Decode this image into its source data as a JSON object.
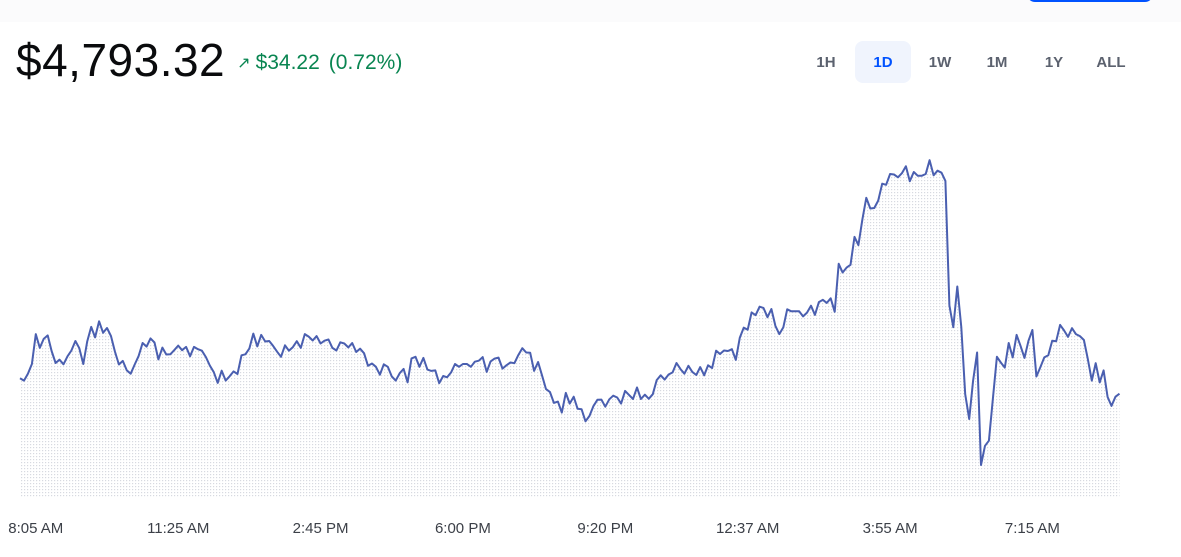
{
  "price": "$4,793.32",
  "change": {
    "arrow_icon": "arrow-up-right-icon",
    "amount": "$34.22",
    "percent": "(0.72%)"
  },
  "ranges": [
    {
      "label": "1H",
      "active": false
    },
    {
      "label": "1D",
      "active": true
    },
    {
      "label": "1W",
      "active": false
    },
    {
      "label": "1M",
      "active": false
    },
    {
      "label": "1Y",
      "active": false
    },
    {
      "label": "ALL",
      "active": false
    }
  ],
  "colors": {
    "line": "#4a5fb0",
    "positive": "#098551",
    "active_range": "#0052ff",
    "active_range_bg": "#f0f4fd"
  },
  "chart_data": {
    "type": "line",
    "title": "",
    "xlabel": "",
    "ylabel": "",
    "x_ticks": [
      "8:05 AM",
      "11:25 AM",
      "2:45 PM",
      "6:00 PM",
      "9:20 PM",
      "12:37 AM",
      "3:55 AM",
      "7:15 AM"
    ],
    "x_index_range": [
      0,
      288
    ],
    "x_tick_index": [
      4,
      40,
      76,
      112,
      148,
      184,
      220,
      256
    ],
    "y_axis_shown": false,
    "grid": false,
    "area_fill": "dotted",
    "ylim": [
      4700,
      4840
    ],
    "series": [
      {
        "values": [
          4746.8,
          4745.9,
          4748.6,
          4752.4,
          4764.1,
          4758.7,
          4762.2,
          4763.6,
          4757.5,
          4752.8,
          4754.1,
          4752.3,
          4755.4,
          4757.7,
          4761.4,
          4758.6,
          4752.4,
          4761.2,
          4766.9,
          4762.8,
          4769.1,
          4764.6,
          4766.5,
          4763.3,
          4757.3,
          4752.2,
          4753.6,
          4749.9,
          4748.6,
          4752.2,
          4755.5,
          4760.6,
          4759.2,
          4762.4,
          4760.8,
          4754.2,
          4758.8,
          4756.1,
          4756.2,
          4757.8,
          4759.6,
          4757.8,
          4759.1,
          4755.4,
          4759.1,
          4758.2,
          4757.6,
          4755.1,
          4751.8,
          4749.2,
          4745.0,
          4749.8,
          4745.9,
          4747.6,
          4749.5,
          4748.5,
          4755.8,
          4756.2,
          4758.5,
          4764.3,
          4759.3,
          4763.8,
          4761.2,
          4761.4,
          4759.5,
          4757.2,
          4755.2,
          4759.7,
          4757.6,
          4759.0,
          4761.3,
          4758.7,
          4764.1,
          4763.1,
          4761.6,
          4763.3,
          4760.4,
          4761.5,
          4762.0,
          4758.7,
          4757.7,
          4760.9,
          4760.4,
          4758.9,
          4760.6,
          4757.1,
          4758.4,
          4756.6,
          4751.7,
          4752.6,
          4751.3,
          4748.2,
          4752.3,
          4751.3,
          4747.5,
          4745.9,
          4748.8,
          4750.5,
          4745.2,
          4754.6,
          4755.2,
          4751.3,
          4754.8,
          4750.2,
          4749.7,
          4749.9,
          4744.9,
          4747.7,
          4747.2,
          4749.1,
          4752.4,
          4751.3,
          4752.4,
          4752.4,
          4751.3,
          4753.3,
          4753.7,
          4755.1,
          4749.3,
          4753.4,
          4754.5,
          4754.9,
          4750.6,
          4751.9,
          4753.0,
          4752.7,
          4755.9,
          4758.6,
          4756.9,
          4756.8,
          4749.7,
          4753.2,
          4748.0,
          4742.6,
          4741.4,
          4737.2,
          4737.7,
          4733.4,
          4741.1,
          4736.9,
          4739.6,
          4734.9,
          4734.7,
          4730.0,
          4732.1,
          4736.0,
          4738.4,
          4738.5,
          4735.7,
          4738.6,
          4740.0,
          4739.3,
          4736.9,
          4741.9,
          4740.3,
          4738.7,
          4743.2,
          4738.7,
          4740.4,
          4738.8,
          4740.6,
          4746.1,
          4748.0,
          4746.3,
          4748.3,
          4749.1,
          4752.8,
          4750.4,
          4748.6,
          4751.7,
          4749.3,
          4748.1,
          4751.2,
          4748.0,
          4751.9,
          4750.8,
          4757.6,
          4756.3,
          4757.7,
          4757.5,
          4758.2,
          4754.0,
          4762.7,
          4766.6,
          4765.8,
          4772.6,
          4771.5,
          4774.8,
          4774.3,
          4770.7,
          4773.9,
          4767.3,
          4764.1,
          4766.7,
          4773.8,
          4773.0,
          4773.0,
          4773.0,
          4771.0,
          4772.5,
          4775.2,
          4771.6,
          4776.6,
          4777.5,
          4776.3,
          4778.1,
          4772.8,
          4791.6,
          4788.2,
          4790.1,
          4791.2,
          4802.1,
          4798.9,
          4809.0,
          4817.4,
          4813.2,
          4813.4,
          4816.3,
          4822.9,
          4822.5,
          4826.7,
          4826.5,
          4825.4,
          4827.0,
          4829.7,
          4823.9,
          4827.5,
          4826.0,
          4826.0,
          4826.7,
          4832.1,
          4826.2,
          4828.0,
          4827.2,
          4824.0,
          4775.3,
          4766.8,
          4782.7,
          4766.8,
          4740.6,
          4730.9,
          4745.9,
          4756.9,
          4712.9,
          4720.4,
          4722.4,
          4738.9,
          4755.2,
          4753.0,
          4751.0,
          4760.6,
          4755.0,
          4763.8,
          4759.4,
          4754.8,
          4761.5,
          4765.7,
          4747.5,
          4751.2,
          4755.0,
          4755.8,
          4761.5,
          4761.3,
          4767.7,
          4765.5,
          4763.0,
          4766.4,
          4764.1,
          4763.3,
          4761.8,
          4754.4,
          4745.9,
          4752.7,
          4745.2,
          4749.9,
          4739.5,
          4736.0,
          4739.6,
          4740.8
        ]
      }
    ]
  }
}
